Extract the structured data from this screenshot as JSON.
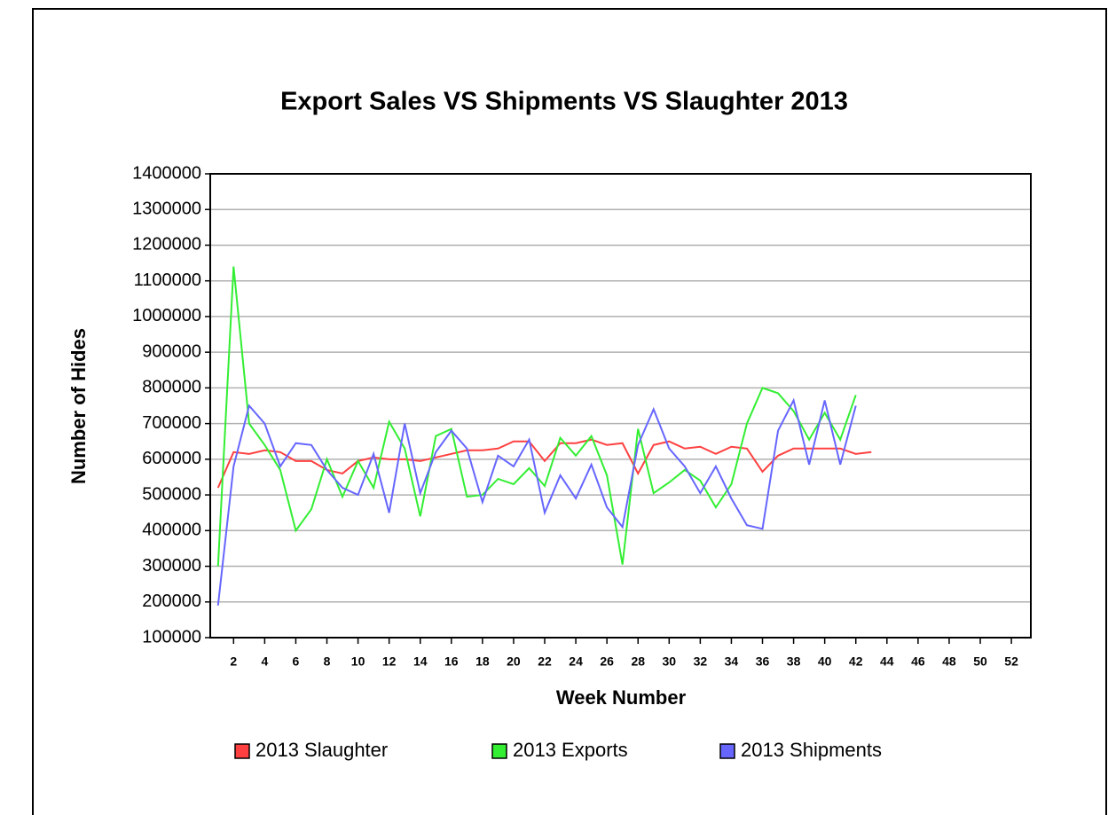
{
  "chart_data": {
    "type": "line",
    "title": "Export Sales VS Shipments VS Slaughter 2013",
    "x_label": "Week Number",
    "y_label": "Number of Hides",
    "xlim": [
      0.5,
      53.25
    ],
    "xticks": [
      2,
      4,
      6,
      8,
      10,
      12,
      14,
      16,
      18,
      20,
      22,
      24,
      26,
      28,
      30,
      32,
      34,
      36,
      38,
      40,
      42,
      44,
      46,
      48,
      50,
      52
    ],
    "ylim": [
      100000,
      1400000
    ],
    "yticks": [
      100000,
      200000,
      300000,
      400000,
      500000,
      600000,
      700000,
      800000,
      900000,
      1000000,
      1100000,
      1200000,
      1300000,
      1400000
    ],
    "grid": true,
    "legend": "bottom",
    "series": [
      {
        "name": "2013 Slaughter",
        "color": "#ff4040",
        "x": [
          1,
          2,
          3,
          4,
          5,
          6,
          7,
          8,
          9,
          10,
          11,
          12,
          13,
          14,
          15,
          16,
          17,
          18,
          19,
          20,
          21,
          22,
          23,
          24,
          25,
          26,
          27,
          28,
          29,
          30,
          31,
          32,
          33,
          34,
          35,
          36,
          37,
          38,
          39,
          40,
          41,
          42,
          43
        ],
        "values": [
          520000,
          620000,
          615000,
          625000,
          620000,
          595000,
          595000,
          570000,
          560000,
          595000,
          605000,
          600000,
          600000,
          595000,
          605000,
          615000,
          625000,
          625000,
          630000,
          650000,
          650000,
          595000,
          645000,
          645000,
          655000,
          640000,
          645000,
          560000,
          640000,
          650000,
          630000,
          635000,
          615000,
          635000,
          630000,
          565000,
          610000,
          630000,
          630000,
          630000,
          630000,
          615000,
          620000
        ]
      },
      {
        "name": "2013 Exports",
        "color": "#33ee33",
        "x": [
          1,
          2,
          3,
          4,
          5,
          6,
          7,
          8,
          9,
          10,
          11,
          12,
          13,
          14,
          15,
          16,
          17,
          18,
          19,
          20,
          21,
          22,
          23,
          24,
          25,
          26,
          27,
          28,
          29,
          30,
          31,
          32,
          33,
          34,
          35,
          36,
          37,
          38,
          39,
          40,
          41,
          42
        ],
        "values": [
          300000,
          1140000,
          700000,
          640000,
          570000,
          400000,
          460000,
          600000,
          495000,
          595000,
          520000,
          705000,
          630000,
          440000,
          665000,
          685000,
          495000,
          500000,
          545000,
          530000,
          575000,
          525000,
          660000,
          610000,
          665000,
          555000,
          305000,
          685000,
          505000,
          535000,
          570000,
          540000,
          465000,
          530000,
          700000,
          800000,
          785000,
          735000,
          655000,
          730000,
          655000,
          780000
        ]
      },
      {
        "name": "2013 Shipments",
        "color": "#6666ff",
        "x": [
          1,
          2,
          3,
          4,
          5,
          6,
          7,
          8,
          9,
          10,
          11,
          12,
          13,
          14,
          15,
          16,
          17,
          18,
          19,
          20,
          21,
          22,
          23,
          24,
          25,
          26,
          27,
          28,
          29,
          30,
          31,
          32,
          33,
          34,
          35,
          36,
          37,
          38,
          39,
          40,
          41,
          42
        ],
        "values": [
          190000,
          580000,
          750000,
          700000,
          580000,
          645000,
          640000,
          570000,
          520000,
          500000,
          615000,
          450000,
          700000,
          505000,
          620000,
          680000,
          630000,
          480000,
          610000,
          580000,
          655000,
          450000,
          555000,
          490000,
          585000,
          465000,
          410000,
          640000,
          740000,
          630000,
          580000,
          505000,
          580000,
          490000,
          415000,
          405000,
          680000,
          765000,
          585000,
          765000,
          585000,
          750000
        ]
      }
    ]
  }
}
